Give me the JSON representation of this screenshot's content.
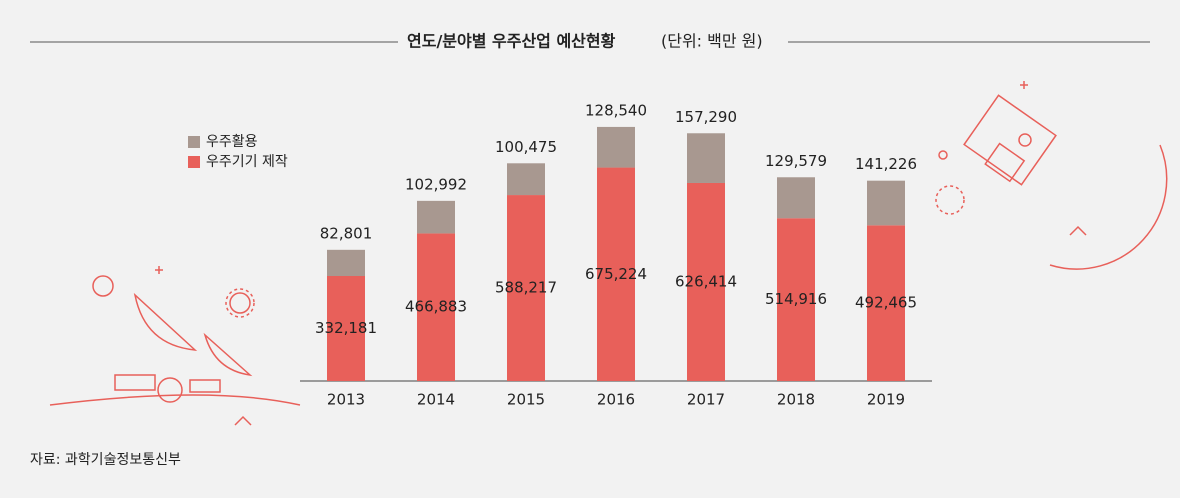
{
  "chart_data": {
    "type": "stacked_bar",
    "title": "연도/분야별 우주산업 예산현황",
    "subtitle": "(단위: 백만 원)",
    "source": "자료: 과학기술정보통신부",
    "categories": [
      "2013",
      "2014",
      "2015",
      "2016",
      "2017",
      "2018",
      "2019"
    ],
    "series": [
      {
        "name": "우주기기 제작",
        "color": "#e8605a",
        "values": [
          332181,
          466883,
          588217,
          675224,
          626414,
          514916,
          492465
        ],
        "value_labels": [
          "332,181",
          "466,883",
          "588,217",
          "675,224",
          "626,414",
          "514,916",
          "492,465"
        ]
      },
      {
        "name": "우주활용",
        "color": "#a89890",
        "values": [
          82801,
          102992,
          100475,
          128540,
          157290,
          129579,
          141226
        ],
        "value_labels": [
          "82,801",
          "102,992",
          "100,475",
          "128,540",
          "157,290",
          "129,579",
          "141,226"
        ]
      }
    ],
    "ylim": [
      0,
      900000
    ]
  }
}
